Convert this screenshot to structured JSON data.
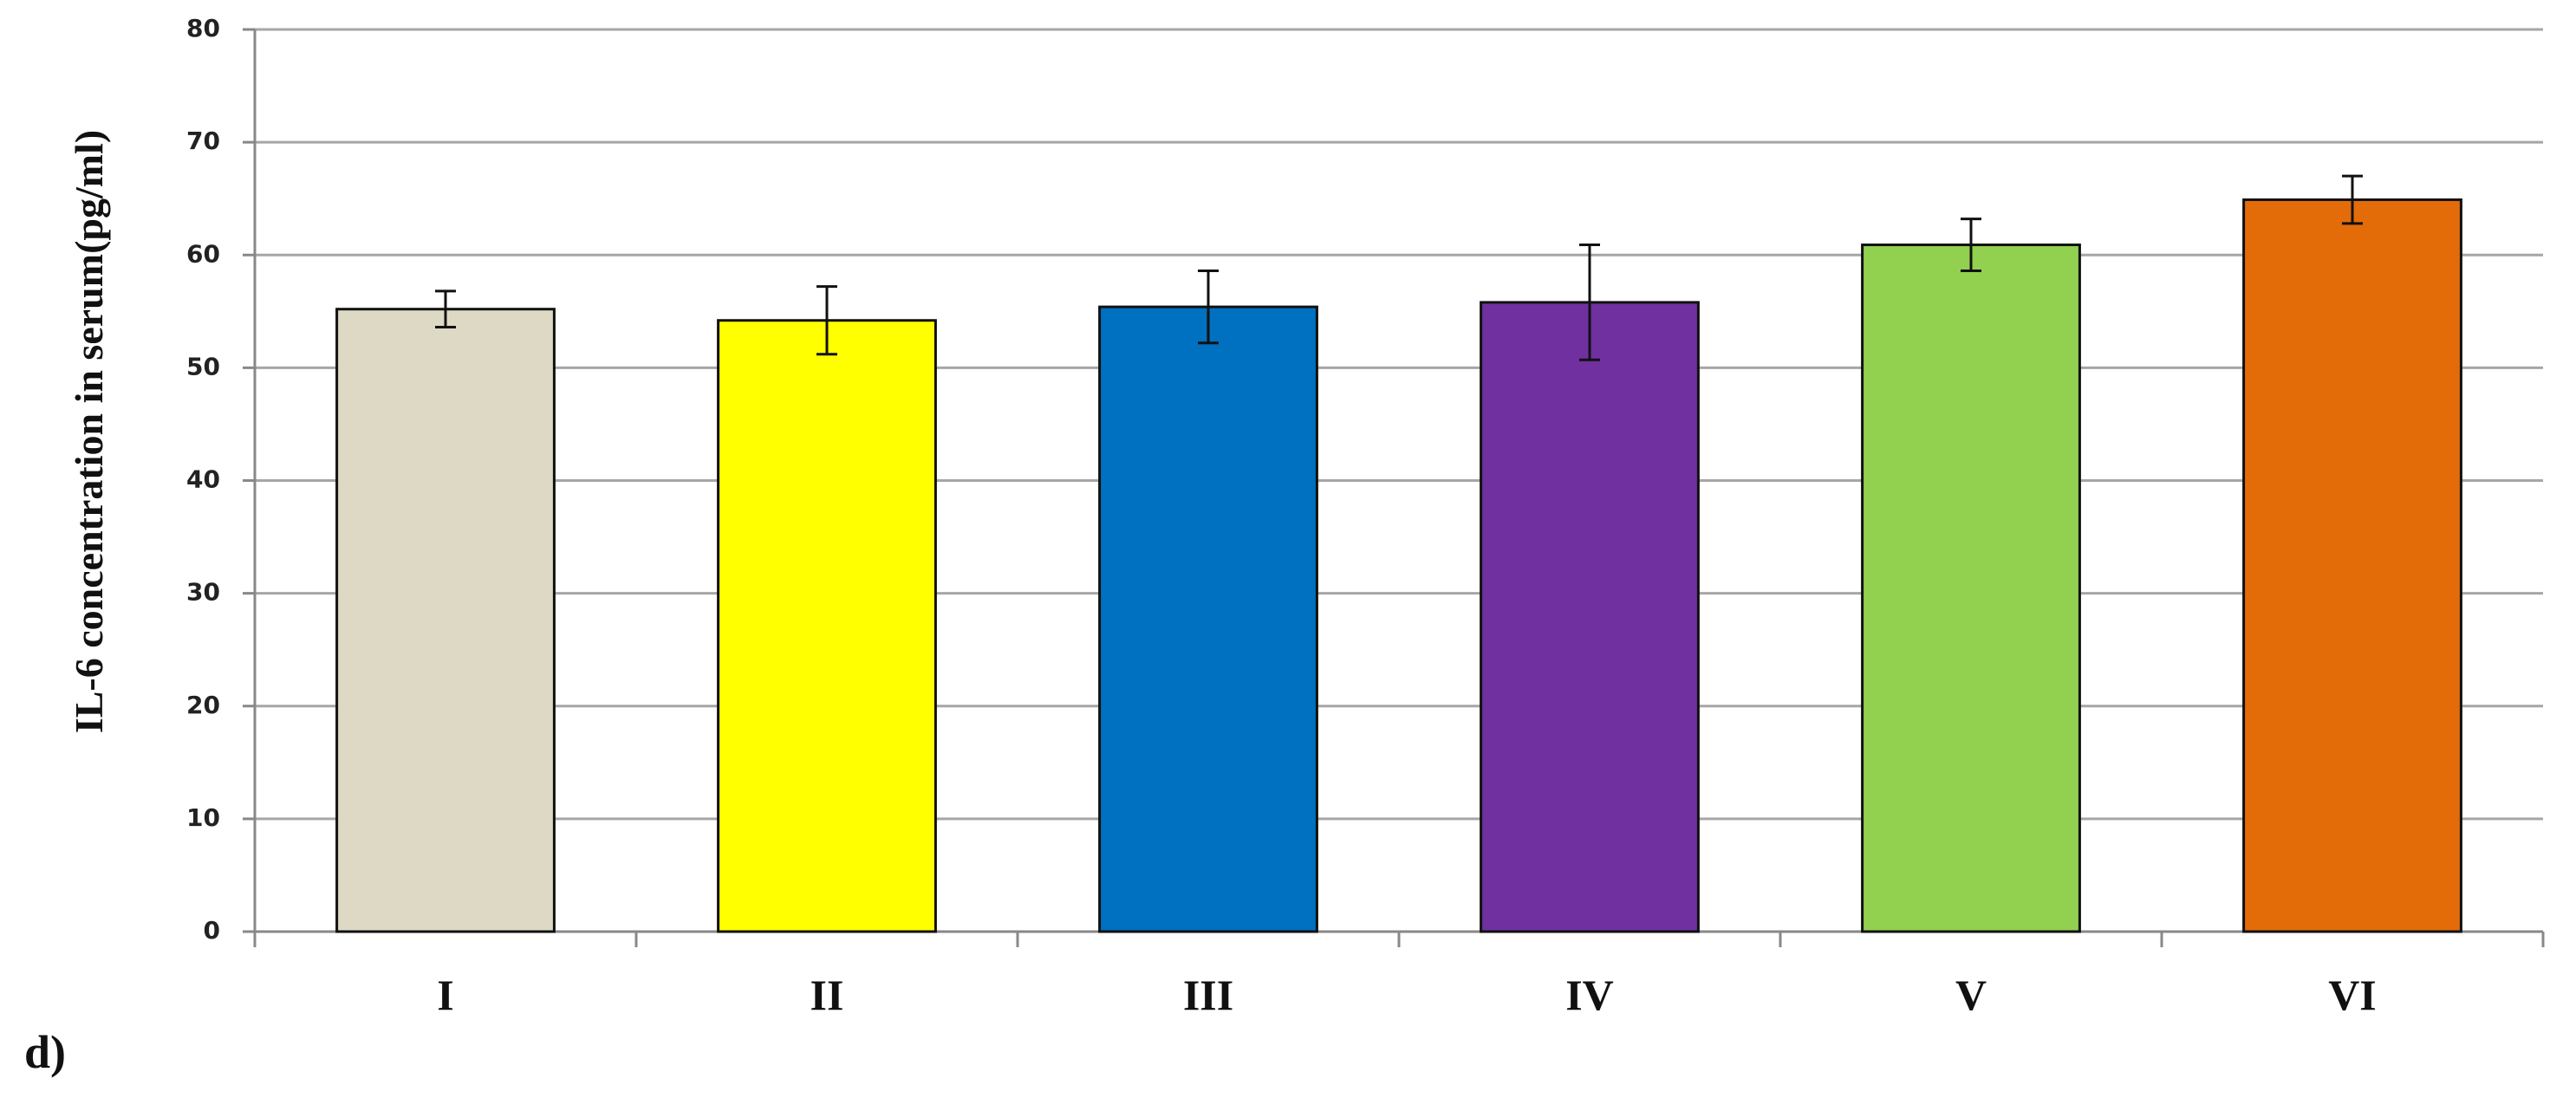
{
  "chart_data": {
    "type": "bar",
    "y_label": "IL-6 concentration in serum(pg/ml)",
    "panel_label": "d)",
    "categories": [
      "I",
      "II",
      "III",
      "IV",
      "V",
      "VI"
    ],
    "values": [
      55.2,
      54.2,
      55.4,
      55.8,
      60.9,
      64.9
    ],
    "errors": [
      1.6,
      3,
      3.2,
      5.1,
      2.3,
      2.1
    ],
    "colors": [
      "#ddd9c4",
      "#ffff00",
      "#0070c0",
      "#7030a0",
      "#92d050",
      "#e36c09"
    ],
    "ylim": [
      0,
      80
    ],
    "yticks": [
      0,
      10,
      20,
      30,
      40,
      50,
      60,
      70,
      80
    ],
    "grid": true
  }
}
